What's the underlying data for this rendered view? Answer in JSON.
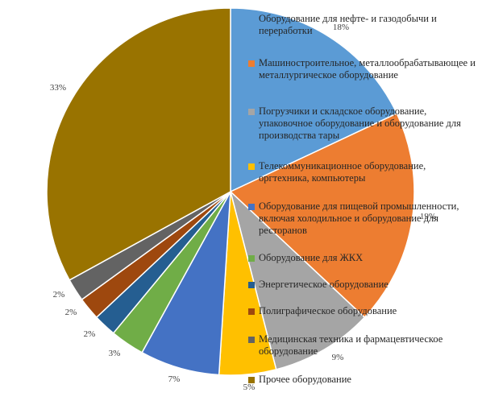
{
  "chart_data": {
    "type": "pie",
    "title": "",
    "categories": [
      "Оборудование для нефте- и газодобычи и переработки",
      "Машиностроительное, металлообрабатывающее и металлургическое оборудование",
      "Погрузчики и складское оборудование, упаковочное оборудование и оборудование для производства тары",
      "Телекоммуникационное оборудование, оргтехника, компьютеры",
      "Оборудование для пищевой промышленности, включая холодильное и оборудование для ресторанов",
      "Оборудование для ЖКХ",
      "Энергетическое оборудование",
      "Полиграфическое оборудование",
      "Медицинская техника и фармацевтическое оборудование",
      "Прочее оборудование"
    ],
    "values": [
      18,
      19,
      9,
      5,
      7,
      3,
      2,
      2,
      2,
      33
    ],
    "value_labels": [
      "18%",
      "19%",
      "9%",
      "5%",
      "7%",
      "3%",
      "2%",
      "2%",
      "2%",
      "33%"
    ],
    "colors": [
      "#5B9BD5",
      "#ED7D31",
      "#A5A5A5",
      "#FFC000",
      "#4472C4",
      "#70AD47",
      "#255E91",
      "#9E480E",
      "#636363",
      "#997300"
    ],
    "legend_position": "right-overlay"
  }
}
